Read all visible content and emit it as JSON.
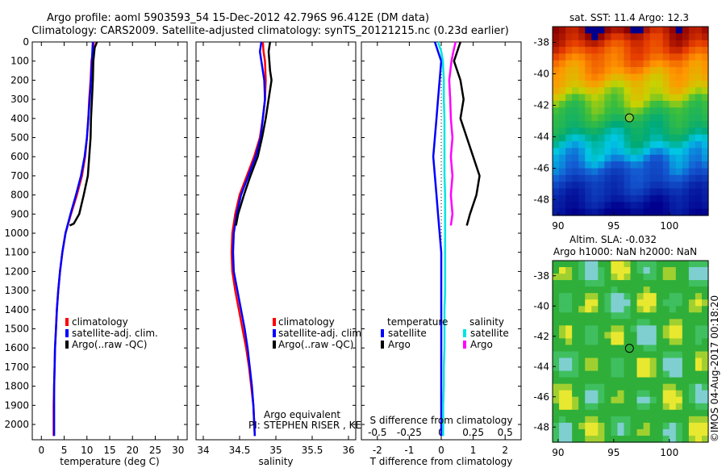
{
  "header": {
    "title1": "Argo profile: aoml 5903593_54 15-Dec-2012 42.796S 96.412E (DM data)",
    "title2": "Climatology: CARS2009. Satellite-adjusted climatology: synTS_20121215.nc (0.23d earlier)"
  },
  "colors": {
    "climatology": "#ff0000",
    "satellite": "#0000ff",
    "argo": "#000000",
    "sal_satellite": "#00e5e5",
    "sal_argo": "#ff00ff"
  },
  "chart_data": [
    {
      "type": "line",
      "id": "temperature",
      "xlabel": "temperature (deg C)",
      "ylabel": "",
      "xlim": [
        -2,
        32
      ],
      "ylim": [
        2080,
        0
      ],
      "xticks": [
        0,
        5,
        10,
        15,
        20,
        25,
        30
      ],
      "yticks": [
        0,
        100,
        200,
        300,
        400,
        500,
        600,
        700,
        800,
        900,
        1000,
        1100,
        1200,
        1300,
        1400,
        1500,
        1600,
        1700,
        1800,
        1900,
        2000
      ],
      "legend": [
        "climatology",
        "satellite-adj. clim.",
        "Argo(..raw -QC)"
      ],
      "legend_position": "lower-right",
      "series": [
        {
          "name": "climatology",
          "color": "#ff0000",
          "x": [
            11.5,
            11.3,
            11.0,
            10.8,
            10.5,
            10.3,
            10.0,
            9.6,
            8.9,
            7.8,
            6.5,
            5.3,
            4.6,
            4.1,
            3.7,
            3.4,
            3.2,
            3.0,
            2.9,
            2.8,
            2.7,
            2.7,
            2.7
          ],
          "y": [
            0,
            50,
            100,
            200,
            300,
            400,
            500,
            600,
            700,
            800,
            900,
            1000,
            1100,
            1200,
            1300,
            1400,
            1500,
            1600,
            1700,
            1800,
            1900,
            2000,
            2060
          ]
        },
        {
          "name": "satellite-adj. clim.",
          "color": "#0000ff",
          "x": [
            11.3,
            11.2,
            11.1,
            10.9,
            10.6,
            10.3,
            10.0,
            9.5,
            8.7,
            7.6,
            6.4,
            5.3,
            4.6,
            4.1,
            3.7,
            3.4,
            3.2,
            3.0,
            2.9,
            2.8,
            2.8,
            2.8,
            2.8
          ],
          "y": [
            0,
            50,
            100,
            200,
            300,
            400,
            500,
            600,
            700,
            800,
            900,
            1000,
            1100,
            1200,
            1300,
            1400,
            1500,
            1600,
            1700,
            1800,
            1900,
            2000,
            2060
          ]
        },
        {
          "name": "Argo(..raw -QC)",
          "color": "#000000",
          "x": [
            12.2,
            11.7,
            11.4,
            11.3,
            11.1,
            10.9,
            10.8,
            10.5,
            10.2,
            9.3,
            8.3,
            7.1,
            6.2
          ],
          "y": [
            0,
            30,
            100,
            200,
            300,
            400,
            500,
            600,
            700,
            800,
            900,
            950,
            960
          ]
        }
      ]
    },
    {
      "type": "line",
      "id": "salinity",
      "xlabel": "salinity",
      "ylabel": "",
      "xlim": [
        33.9,
        36.1
      ],
      "ylim": [
        2080,
        0
      ],
      "xticks": [
        34,
        34.5,
        35,
        35.5,
        36
      ],
      "legend": [
        "climatology",
        "satellite-adj. clim.",
        "Argo(..raw -QC)"
      ],
      "legend_position": "lower-right",
      "annotation": [
        "Argo equivalent",
        "PI: STEPHEN RISER , KENNETH JOHNSON"
      ],
      "series": [
        {
          "name": "climatology",
          "color": "#ff0000",
          "x": [
            34.82,
            34.83,
            34.85,
            34.86,
            34.85,
            34.82,
            34.78,
            34.7,
            34.6,
            34.5,
            34.44,
            34.4,
            34.39,
            34.4,
            34.44,
            34.49,
            34.54,
            34.59,
            34.63,
            34.66,
            34.69,
            34.71
          ],
          "y": [
            0,
            50,
            100,
            200,
            300,
            400,
            500,
            600,
            700,
            800,
            900,
            1000,
            1100,
            1200,
            1300,
            1400,
            1500,
            1600,
            1700,
            1800,
            1900,
            2060
          ]
        },
        {
          "name": "satellite-adj. clim.",
          "color": "#0000ff",
          "x": [
            34.8,
            34.78,
            34.8,
            34.84,
            34.85,
            34.82,
            34.79,
            34.72,
            34.62,
            34.52,
            34.46,
            34.42,
            34.41,
            34.42,
            34.47,
            34.52,
            34.57,
            34.61,
            34.64,
            34.67,
            34.69,
            34.71
          ],
          "y": [
            0,
            50,
            100,
            200,
            300,
            400,
            500,
            600,
            700,
            800,
            900,
            1000,
            1100,
            1200,
            1300,
            1400,
            1500,
            1600,
            1700,
            1800,
            1900,
            2060
          ]
        },
        {
          "name": "Argo(..raw -QC)",
          "color": "#000000",
          "x": [
            34.92,
            34.9,
            34.92,
            34.94,
            34.9,
            34.86,
            34.81,
            34.75,
            34.65,
            34.56,
            34.48,
            34.45
          ],
          "y": [
            0,
            50,
            150,
            200,
            300,
            400,
            500,
            600,
            700,
            800,
            900,
            960
          ]
        }
      ]
    },
    {
      "type": "line",
      "id": "differences",
      "xlabel": "T difference from climatology",
      "xlabel_top": "S difference from climatology",
      "ylabel": "",
      "xlim": [
        -2.5,
        2.5
      ],
      "ylim": [
        2080,
        0
      ],
      "xticks": [
        -2,
        -1,
        0,
        1,
        2
      ],
      "xticks_top": [
        "-0.5",
        "-0.25",
        "0",
        "0.25",
        "0.5"
      ],
      "legend_titles": [
        "temperature",
        "salinity"
      ],
      "legend": [
        "satellite",
        "Argo",
        "satellite",
        "Argo"
      ],
      "legend_position": "lower-center",
      "series": [
        {
          "name": "satellite",
          "variable": "temperature",
          "color": "#0000ff",
          "x": [
            -0.2,
            -0.1,
            0.0,
            -0.05,
            -0.1,
            -0.15,
            -0.2,
            -0.25,
            -0.2,
            -0.15,
            -0.1,
            -0.05,
            0.0,
            0.0,
            0.0,
            0.0,
            0.0,
            0.0,
            0.0,
            0.0,
            0.0,
            0.0
          ],
          "y": [
            0,
            50,
            100,
            200,
            300,
            400,
            500,
            600,
            700,
            800,
            900,
            1000,
            1100,
            1200,
            1300,
            1400,
            1500,
            1600,
            1700,
            1800,
            1900,
            2060
          ]
        },
        {
          "name": "Argo",
          "variable": "temperature",
          "color": "#000000",
          "x": [
            0.6,
            0.5,
            0.4,
            0.6,
            0.7,
            0.6,
            0.8,
            1.0,
            1.2,
            1.1,
            0.9,
            0.8
          ],
          "y": [
            0,
            50,
            100,
            200,
            300,
            400,
            500,
            600,
            700,
            800,
            900,
            960
          ]
        },
        {
          "name": "satellite",
          "variable": "salinity",
          "color": "#00e5e5",
          "x": [
            -0.1,
            0.0,
            0.05,
            0.08,
            0.08,
            0.1,
            0.1,
            0.1,
            0.1,
            0.12,
            0.12,
            0.12,
            0.12,
            0.12,
            0.12,
            0.1,
            0.1,
            0.1,
            0.08,
            0.08,
            0.06,
            0.06
          ],
          "y": [
            0,
            50,
            100,
            200,
            300,
            400,
            500,
            600,
            700,
            800,
            900,
            1000,
            1100,
            1200,
            1300,
            1400,
            1500,
            1600,
            1700,
            1800,
            1900,
            2060
          ]
        },
        {
          "name": "Argo",
          "variable": "salinity",
          "color": "#ff00ff",
          "x": [
            0.45,
            0.38,
            0.32,
            0.25,
            0.28,
            0.3,
            0.35,
            0.3,
            0.35,
            0.3,
            0.35,
            0.3
          ],
          "y": [
            0,
            50,
            100,
            200,
            300,
            400,
            500,
            600,
            700,
            800,
            900,
            960
          ]
        }
      ]
    },
    {
      "type": "heatmap",
      "id": "sst_map",
      "title": "sat. SST: 11.4  Argo: 12.3",
      "xlim": [
        89.5,
        103.5
      ],
      "ylim": [
        -49,
        -37
      ],
      "xticks": [
        90,
        95,
        100
      ],
      "yticks": [
        -38,
        -40,
        -42,
        -44,
        -46,
        -48
      ],
      "marker": {
        "lon": 96.412,
        "lat": -42.796
      }
    },
    {
      "type": "heatmap",
      "id": "sla_map",
      "title": "Altim. SLA: -0.032",
      "subtitle": "Argo h1000: NaN h2000: NaN",
      "xlim": [
        89.5,
        103.5
      ],
      "ylim": [
        -49,
        -37
      ],
      "xticks": [
        90,
        95,
        100
      ],
      "yticks": [
        -38,
        -40,
        -42,
        -44,
        -46,
        -48
      ],
      "marker": {
        "lon": 96.412,
        "lat": -42.796
      }
    }
  ],
  "credit": "©IMOS 04-Aug-2017 00:18:20"
}
